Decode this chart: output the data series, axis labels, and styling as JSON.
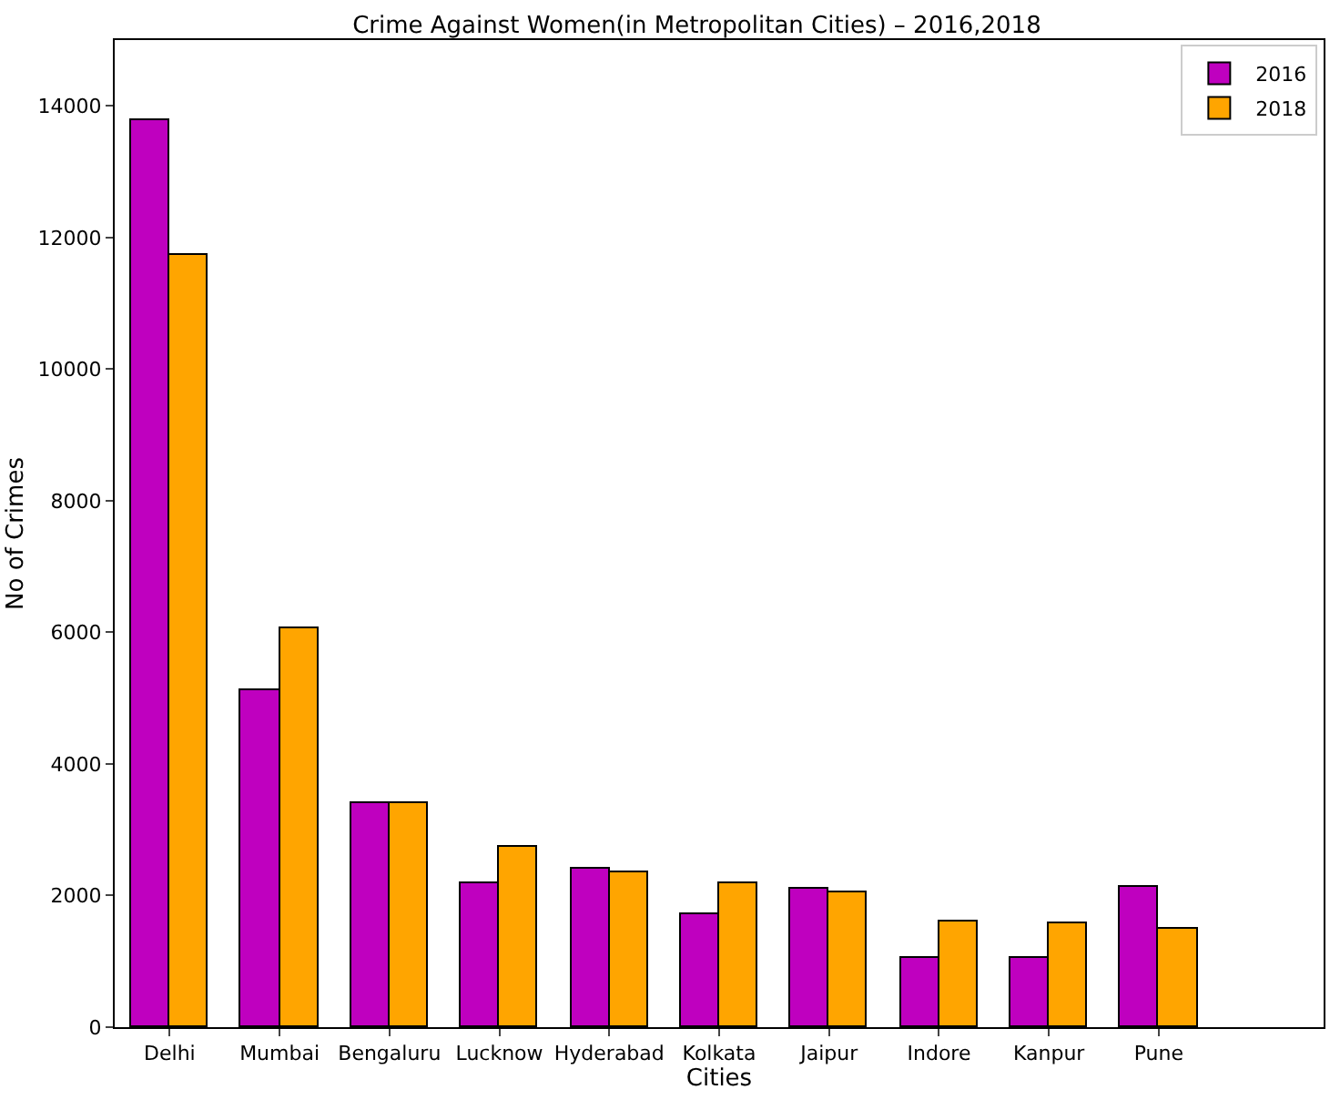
{
  "chart_data": {
    "type": "bar",
    "title": "Crime Against Women(in Metropolitan Cities) – 2016,2018",
    "xlabel": "Cities",
    "ylabel": "No of Crimes",
    "categories": [
      "Delhi",
      "Mumbai",
      "Bengaluru",
      "Lucknow",
      "Hyderabad",
      "Kolkata",
      "Jaipur",
      "Indore",
      "Kanpur",
      "Pune"
    ],
    "series": [
      {
        "name": "2016",
        "color": "#bf00bf",
        "values": [
          13780,
          5120,
          3410,
          2200,
          2420,
          1720,
          2090,
          1050,
          1050,
          2120
        ]
      },
      {
        "name": "2018",
        "color": "#ffa500",
        "values": [
          11730,
          6060,
          3410,
          2730,
          2340,
          2180,
          2040,
          1600,
          1570,
          1490
        ]
      }
    ],
    "ylim": [
      0,
      15000
    ],
    "yticks": [
      0,
      2000,
      4000,
      6000,
      8000,
      10000,
      12000,
      14000
    ],
    "legend": "top right"
  }
}
